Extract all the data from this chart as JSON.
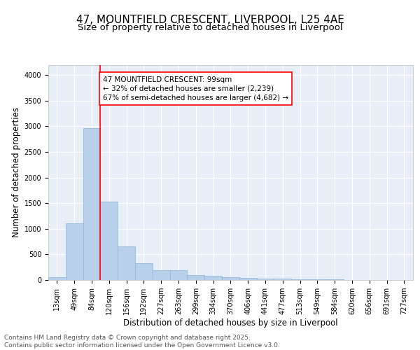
{
  "title_line1": "47, MOUNTFIELD CRESCENT, LIVERPOOL, L25 4AE",
  "title_line2": "Size of property relative to detached houses in Liverpool",
  "xlabel": "Distribution of detached houses by size in Liverpool",
  "ylabel": "Number of detached properties",
  "categories": [
    "13sqm",
    "49sqm",
    "84sqm",
    "120sqm",
    "156sqm",
    "192sqm",
    "227sqm",
    "263sqm",
    "299sqm",
    "334sqm",
    "370sqm",
    "406sqm",
    "441sqm",
    "477sqm",
    "513sqm",
    "549sqm",
    "584sqm",
    "620sqm",
    "656sqm",
    "691sqm",
    "727sqm"
  ],
  "values": [
    55,
    1110,
    2970,
    1530,
    650,
    330,
    195,
    190,
    90,
    80,
    55,
    45,
    30,
    25,
    20,
    10,
    10,
    5,
    5,
    5,
    5
  ],
  "bar_color": "#b8d0ea",
  "bar_edgecolor": "#8ab4d8",
  "bg_color": "#e8eef8",
  "grid_color": "#ffffff",
  "annotation_text": "47 MOUNTFIELD CRESCENT: 99sqm\n← 32% of detached houses are smaller (2,239)\n67% of semi-detached houses are larger (4,682) →",
  "red_line_x": 2.5,
  "ylim": [
    0,
    4200
  ],
  "yticks": [
    0,
    500,
    1000,
    1500,
    2000,
    2500,
    3000,
    3500,
    4000
  ],
  "footer": "Contains HM Land Registry data © Crown copyright and database right 2025.\nContains public sector information licensed under the Open Government Licence v3.0.",
  "title_fontsize": 11,
  "subtitle_fontsize": 9.5,
  "axis_label_fontsize": 8.5,
  "tick_fontsize": 7,
  "annotation_fontsize": 7.5,
  "footer_fontsize": 6.5
}
